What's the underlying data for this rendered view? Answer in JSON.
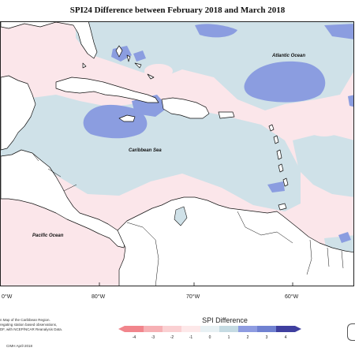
{
  "title": "SPI24 Difference between February 2018 and March 2018",
  "places": {
    "atlantic": "Atlantic Ocean",
    "caribbean": "Caribbean Sea",
    "pacific": "Pacific Ocean"
  },
  "axis": {
    "lon_90": "0°W",
    "lon_80": "80°W",
    "lon_70": "70°W",
    "lon_60": "60°W"
  },
  "legend": {
    "title": "SPI Difference",
    "ticks": [
      "-4",
      "-3",
      "-2",
      "-1",
      "0",
      "1",
      "2",
      "3",
      "4"
    ],
    "colors": [
      "#f1858c",
      "#f6b0b4",
      "#fad0d2",
      "#fde8e9",
      "#e8f1f4",
      "#c5dbe3",
      "#8e9ce1",
      "#7081d1",
      "#3f3f9f"
    ]
  },
  "footnote": {
    "line1": "n Map of the Caribbean Region.",
    "line2": "regating station based observations,",
    "line3": "DF, with NCEP/NCAR Reanalysis Data."
  },
  "credit": "CIMH April-2018",
  "colors": {
    "pink": "#fbe6ea",
    "lightblue": "#cfe1e8",
    "medblue": "#8b9de0",
    "land": "#ffffff",
    "coast": "#111111"
  }
}
